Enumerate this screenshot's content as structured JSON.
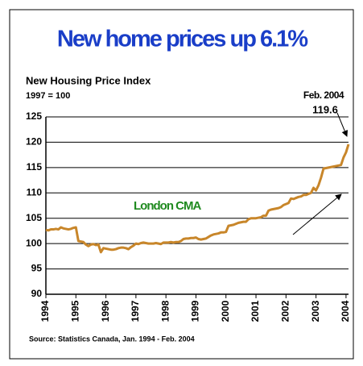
{
  "chart_data": {
    "type": "line",
    "title": "New home prices up 6.1%",
    "y_label": "New Housing Price Index",
    "subtitle": "1997 = 100",
    "annotations": [
      "Feb. 2004",
      "119.6",
      "London CMA"
    ],
    "source": "Source:  Statistics Canada, Jan. 1994 - Feb. 2004",
    "color": "#c8862a",
    "x": [
      1994,
      1994.083,
      1994.167,
      1994.25,
      1994.333,
      1994.417,
      1994.5,
      1994.583,
      1994.667,
      1994.75,
      1994.833,
      1994.917,
      1995,
      1995.083,
      1995.167,
      1995.25,
      1995.333,
      1995.417,
      1995.5,
      1995.583,
      1995.667,
      1995.75,
      1995.833,
      1995.917,
      1996,
      1996.083,
      1996.167,
      1996.25,
      1996.333,
      1996.417,
      1996.5,
      1996.583,
      1996.667,
      1996.75,
      1996.833,
      1996.917,
      1997,
      1997.083,
      1997.167,
      1997.25,
      1997.333,
      1997.417,
      1997.5,
      1997.583,
      1997.667,
      1997.75,
      1997.833,
      1997.917,
      1998,
      1998.083,
      1998.167,
      1998.25,
      1998.333,
      1998.417,
      1998.5,
      1998.583,
      1998.667,
      1998.75,
      1998.833,
      1998.917,
      1999,
      1999.083,
      1999.167,
      1999.25,
      1999.333,
      1999.417,
      1999.5,
      1999.583,
      1999.667,
      1999.75,
      1999.833,
      1999.917,
      2000,
      2000.083,
      2000.167,
      2000.25,
      2000.333,
      2000.417,
      2000.5,
      2000.583,
      2000.667,
      2000.75,
      2000.833,
      2000.917,
      2001,
      2001.083,
      2001.167,
      2001.25,
      2001.333,
      2001.417,
      2001.5,
      2001.583,
      2001.667,
      2001.75,
      2001.833,
      2001.917,
      2002,
      2002.083,
      2002.167,
      2002.25,
      2002.333,
      2002.417,
      2002.5,
      2002.583,
      2002.667,
      2002.75,
      2002.833,
      2002.917,
      2003,
      2003.083,
      2003.167,
      2003.25,
      2003.333,
      2003.417,
      2003.5,
      2003.583,
      2003.667,
      2003.75,
      2003.833,
      2003.917,
      2004,
      2004.083
    ],
    "values": [
      102.7,
      102.6,
      102.8,
      102.8,
      102.9,
      102.8,
      103.2,
      103.0,
      102.9,
      102.8,
      102.9,
      103.1,
      103.2,
      100.5,
      100.4,
      100.3,
      99.8,
      99.5,
      99.8,
      99.9,
      99.7,
      99.8,
      98.3,
      99.1,
      99.0,
      98.9,
      98.8,
      98.8,
      98.9,
      99.1,
      99.2,
      99.2,
      99.1,
      98.9,
      99.3,
      99.6,
      100.0,
      99.9,
      100.1,
      100.2,
      100.1,
      100.0,
      100.0,
      100.0,
      100.1,
      100.0,
      99.9,
      100.2,
      100.2,
      100.2,
      100.3,
      100.2,
      100.3,
      100.3,
      100.5,
      100.9,
      101.0,
      101.0,
      101.1,
      101.1,
      101.2,
      100.9,
      100.8,
      100.9,
      101.0,
      101.3,
      101.6,
      101.8,
      101.9,
      102.0,
      102.2,
      102.2,
      102.3,
      103.5,
      103.6,
      103.7,
      103.9,
      104.1,
      104.2,
      104.3,
      104.3,
      104.8,
      105.0,
      105.0,
      105.0,
      105.1,
      105.2,
      105.5,
      105.5,
      106.5,
      106.7,
      106.8,
      106.9,
      107.0,
      107.2,
      107.6,
      107.8,
      108.0,
      108.9,
      108.8,
      109.0,
      109.2,
      109.3,
      109.6,
      109.6,
      109.8,
      110.0,
      111.0,
      110.5,
      111.5,
      113.0,
      114.8,
      114.9,
      115.0,
      115.1,
      115.2,
      115.3,
      115.4,
      115.5,
      117.0,
      118.0,
      119.6
    ],
    "xlim": [
      1994,
      2004.083
    ],
    "xticks": [
      1994,
      1995,
      1996,
      1997,
      1998,
      1999,
      2000,
      2001,
      2002,
      2003,
      2004
    ],
    "ylim": [
      90,
      125
    ],
    "yticks": [
      90,
      95,
      100,
      105,
      110,
      115,
      120,
      125
    ],
    "grid": true
  }
}
